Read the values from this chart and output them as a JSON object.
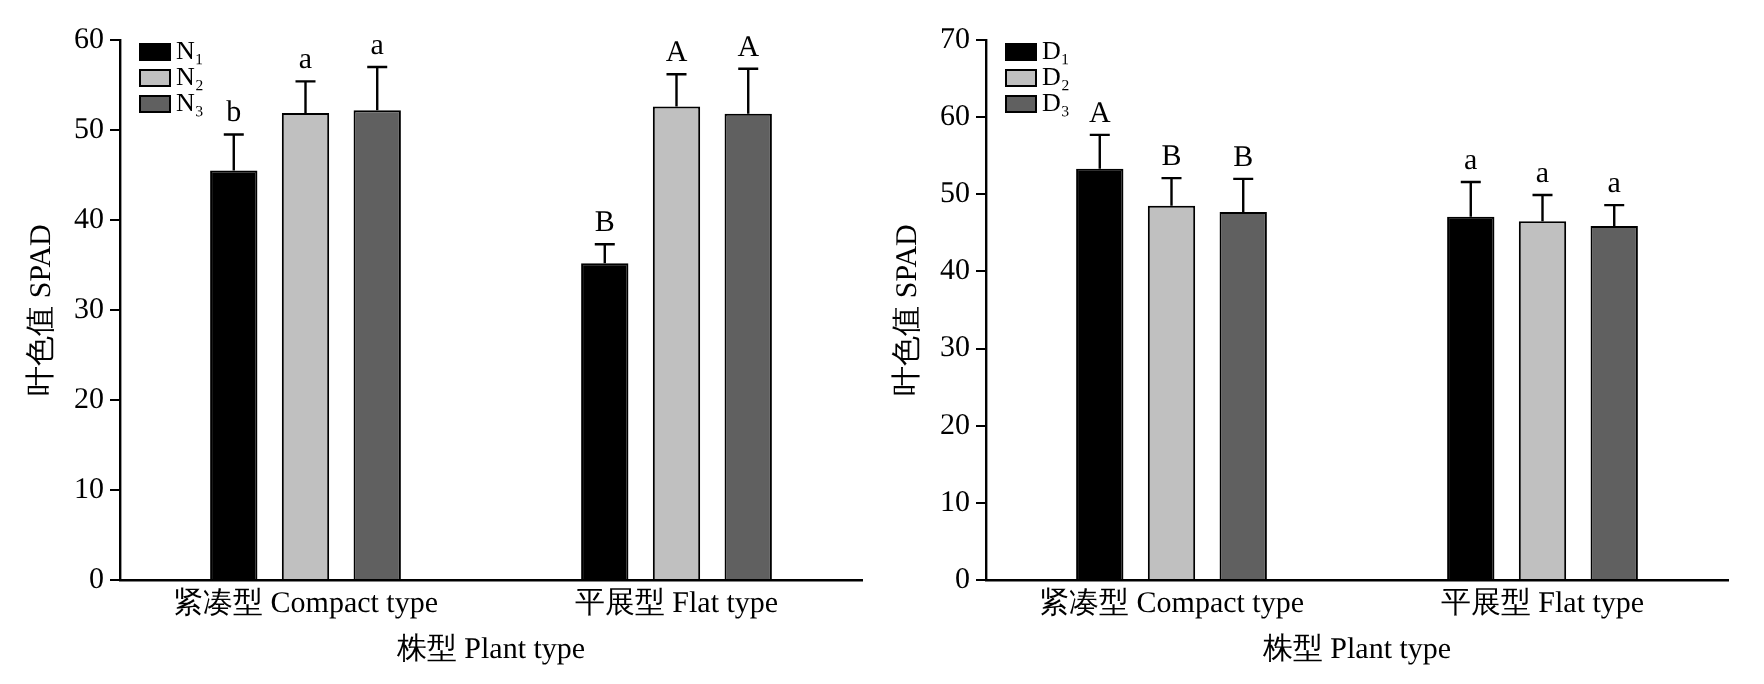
{
  "chart_data": [
    {
      "type": "bar",
      "xlabel": "株型 Plant type",
      "ylabel": "叶色值 SPAD",
      "categories": [
        "紧凑型 Compact type",
        "平展型 Flat type"
      ],
      "ylim": [
        0,
        60
      ],
      "yticks": [
        0,
        10,
        20,
        30,
        40,
        50,
        60
      ],
      "legend": "top left",
      "series": [
        {
          "name": "N₁",
          "color": "#000000",
          "values": [
            45.5,
            35.2
          ],
          "errors": [
            [
              45.5,
              49.5
            ],
            [
              35.2,
              37.3
            ]
          ]
        },
        {
          "name": "N₂",
          "color": "#c0c0c0",
          "values": [
            51.9,
            52.6
          ],
          "errors": [
            [
              51.9,
              55.4
            ],
            [
              52.6,
              56.2
            ]
          ]
        },
        {
          "name": "N₃",
          "color": "#606060",
          "values": [
            52.2,
            51.8
          ],
          "errors": [
            [
              52.2,
              57.0
            ],
            [
              51.8,
              56.8
            ]
          ]
        }
      ],
      "annotations": [
        "b",
        "a",
        "a",
        "B",
        "A",
        "A"
      ]
    },
    {
      "type": "bar",
      "xlabel": "株型 Plant type",
      "ylabel": "叶色值 SPAD",
      "categories": [
        "紧凑型 Compact type",
        "平展型 Flat type"
      ],
      "ylim": [
        0,
        70
      ],
      "yticks": [
        0,
        10,
        20,
        30,
        40,
        50,
        60,
        70
      ],
      "legend": "top left",
      "series": [
        {
          "name": "D₁",
          "color": "#000000",
          "values": [
            53.3,
            47.1
          ],
          "errors": [
            [
              53.3,
              57.7
            ],
            [
              47.1,
              51.6
            ]
          ]
        },
        {
          "name": "D₂",
          "color": "#c0c0c0",
          "values": [
            48.5,
            46.5
          ],
          "errors": [
            [
              48.5,
              52.1
            ],
            [
              46.5,
              49.9
            ]
          ]
        },
        {
          "name": "D₃",
          "color": "#606060",
          "values": [
            47.7,
            45.9
          ],
          "errors": [
            [
              47.7,
              52.0
            ],
            [
              45.9,
              48.6
            ]
          ]
        }
      ],
      "annotations": [
        "A",
        "B",
        "B",
        "a",
        "a",
        "a"
      ]
    }
  ]
}
